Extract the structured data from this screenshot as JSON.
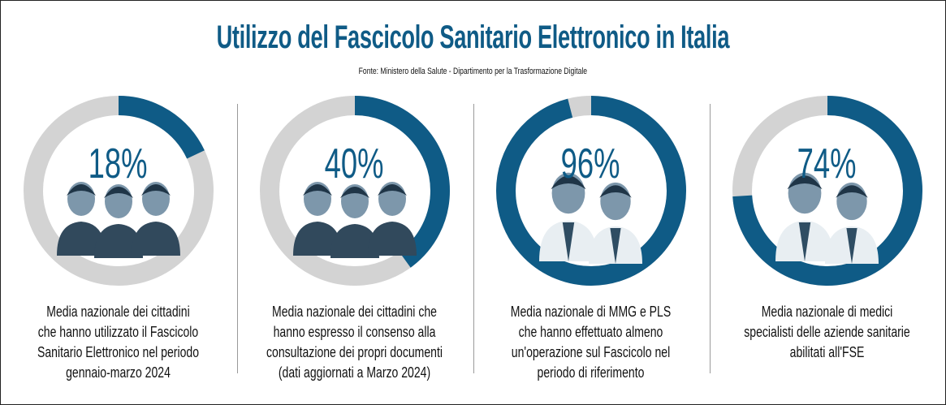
{
  "title": "Utilizzo del Fascicolo Sanitario Elettronico in Italia",
  "source": "Fonte: Ministero della Salute - Dipartimento per la Trasformazione Digitale",
  "colors": {
    "primary": "#0f5b86",
    "remainder": "#d3d3d3"
  },
  "chart_data": [
    {
      "type": "pie",
      "variant": "donut",
      "value": 18,
      "label": "18%",
      "figures": "citizens",
      "description": [
        "Media nazionale dei cittadini",
        "che hanno utilizzato il Fascicolo",
        "Sanitario Elettronico nel periodo",
        "gennaio-marzo 2024"
      ]
    },
    {
      "type": "pie",
      "variant": "donut",
      "value": 40,
      "label": "40%",
      "figures": "citizens",
      "description": [
        "Media nazionale dei cittadini che",
        "hanno espresso il consenso alla",
        "consultazione dei propri documenti",
        "(dati aggiornati a Marzo 2024)"
      ]
    },
    {
      "type": "pie",
      "variant": "donut",
      "value": 96,
      "label": "96%",
      "figures": "doctors",
      "description": [
        "Media nazionale di MMG e PLS",
        "che hanno effettuato almeno",
        "un'operazione sul Fascicolo nel",
        "periodo di riferimento"
      ]
    },
    {
      "type": "pie",
      "variant": "donut",
      "value": 74,
      "label": "74%",
      "figures": "doctors",
      "description": [
        "Media nazionale di medici",
        "specialisti delle aziende sanitarie",
        "abilitati all'FSE"
      ]
    }
  ]
}
